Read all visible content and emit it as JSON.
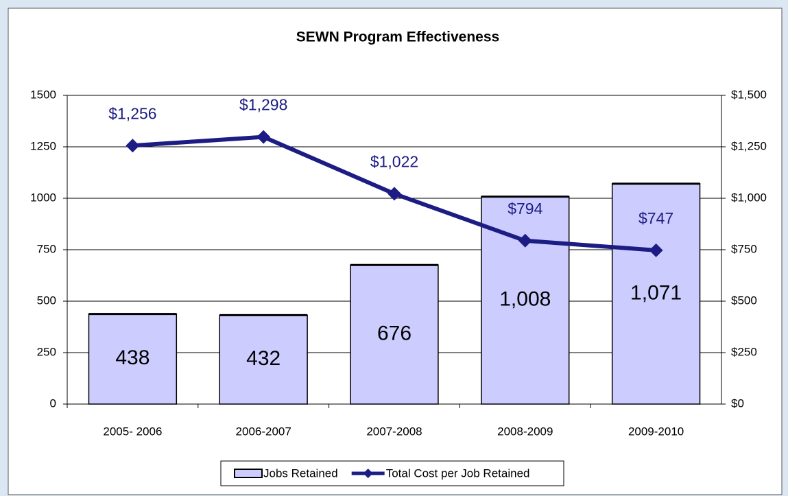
{
  "chart_data": {
    "type": "bar_line",
    "title": "SEWN Program Effectiveness",
    "categories": [
      "2005- 2006",
      "2006-2007",
      "2007-2008",
      "2008-2009",
      "2009-2010"
    ],
    "series": [
      {
        "name": "Jobs Retained",
        "type": "bar",
        "color": "#ccccff",
        "values": [
          438,
          432,
          676,
          1008,
          1071
        ],
        "value_labels": [
          "438",
          "432",
          "676",
          "1,008",
          "1,071"
        ]
      },
      {
        "name": "Total Cost per Job Retained",
        "type": "line",
        "axis": "y2",
        "color": "#1c1c84",
        "values": [
          1256,
          1298,
          1022,
          794,
          747
        ],
        "value_labels": [
          "$1,256",
          "$1,298",
          "$1,022",
          "$794",
          "$747"
        ]
      }
    ],
    "ylim": [
      0,
      1500
    ],
    "yticks": [
      0,
      250,
      500,
      750,
      1000,
      1250,
      1500
    ],
    "y2lim": [
      0,
      1500
    ],
    "y2ticks": [
      {
        "value": 0,
        "label": "$0"
      },
      {
        "value": 250,
        "label": "$250"
      },
      {
        "value": 500,
        "label": "$500"
      },
      {
        "value": 750,
        "label": "$750"
      },
      {
        "value": 1000,
        "label": "$1,000"
      },
      {
        "value": 1250,
        "label": "$1,250"
      },
      {
        "value": 1500,
        "label": "$1,500"
      }
    ],
    "grid": true,
    "legend": "bottom"
  }
}
